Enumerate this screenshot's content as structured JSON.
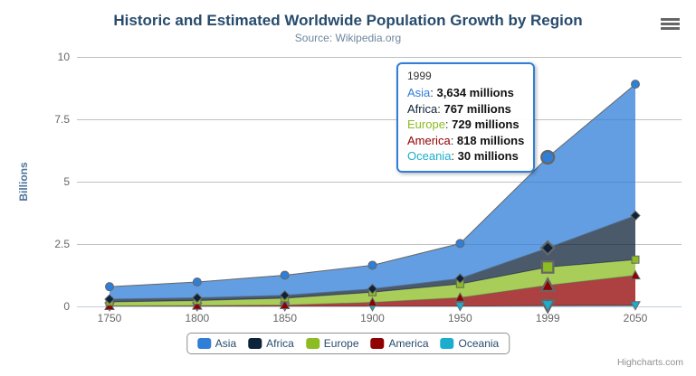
{
  "chart": {
    "title": "Historic and Estimated Worldwide Population Growth by Region",
    "subtitle": "Source: Wikipedia.org",
    "credits": "Highcharts.com"
  },
  "icons": {
    "context_menu": "hamburger-menu"
  },
  "colors": {
    "title_text": "#274b6d",
    "subtitle_text": "#6d869f",
    "axis_label": "#666666",
    "y_axis_title": "#4d759e",
    "grid_line": "#c0c0c0",
    "axis_line": "#c0d0e0",
    "series_outline": "#666666",
    "legend_border": "#909090",
    "legend_text": "#274b6d",
    "credits_text": "#909090",
    "menu_icon": "#666666",
    "tooltip_border": "#2f7ed8"
  },
  "chart_data": {
    "type": "area",
    "stacking": "normal",
    "title": "Historic and Estimated Worldwide Population Growth by Region",
    "subtitle": "Source: Wikipedia.org",
    "categories": [
      "1750",
      "1800",
      "1850",
      "1900",
      "1950",
      "1999",
      "2050"
    ],
    "series": [
      {
        "name": "Asia",
        "color": "#2f7ed8",
        "marker": "circle",
        "values": [
          502,
          635,
          809,
          947,
          1402,
          3634,
          5268
        ]
      },
      {
        "name": "Africa",
        "color": "#0d233a",
        "marker": "diamond",
        "values": [
          106,
          107,
          111,
          133,
          221,
          767,
          1766
        ]
      },
      {
        "name": "Europe",
        "color": "#8bbc21",
        "marker": "square",
        "values": [
          163,
          203,
          276,
          408,
          547,
          729,
          628
        ]
      },
      {
        "name": "America",
        "color": "#910000",
        "marker": "triangle",
        "values": [
          18,
          31,
          54,
          156,
          339,
          818,
          1201
        ]
      },
      {
        "name": "Oceania",
        "color": "#1aadce",
        "marker": "triangle-down",
        "values": [
          2,
          2,
          2,
          6,
          13,
          30,
          46
        ]
      }
    ],
    "values_unit": "millions",
    "xlabel": "",
    "ylabel": "Billions",
    "yticks": [
      "0",
      "2.5",
      "5",
      "7.5",
      "10"
    ],
    "ylim": [
      0,
      10
    ],
    "fill_opacity": 0.75,
    "grid": true,
    "legend_position": "bottom",
    "hover": {
      "category": "1999",
      "category_index": 5
    }
  },
  "tooltip": {
    "header": "1999",
    "rows": [
      {
        "label": "Asia",
        "value": "3,634 millions",
        "color": "#2f7ed8"
      },
      {
        "label": "Africa",
        "value": "767 millions",
        "color": "#0d233a"
      },
      {
        "label": "Europe",
        "value": "729 millions",
        "color": "#8bbc21"
      },
      {
        "label": "America",
        "value": "818 millions",
        "color": "#910000"
      },
      {
        "label": "Oceania",
        "value": "30 millions",
        "color": "#1aadce"
      }
    ]
  },
  "legend": {
    "items": [
      {
        "label": "Asia",
        "color": "#2f7ed8"
      },
      {
        "label": "Africa",
        "color": "#0d233a"
      },
      {
        "label": "Europe",
        "color": "#8bbc21"
      },
      {
        "label": "America",
        "color": "#910000"
      },
      {
        "label": "Oceania",
        "color": "#1aadce"
      }
    ]
  }
}
